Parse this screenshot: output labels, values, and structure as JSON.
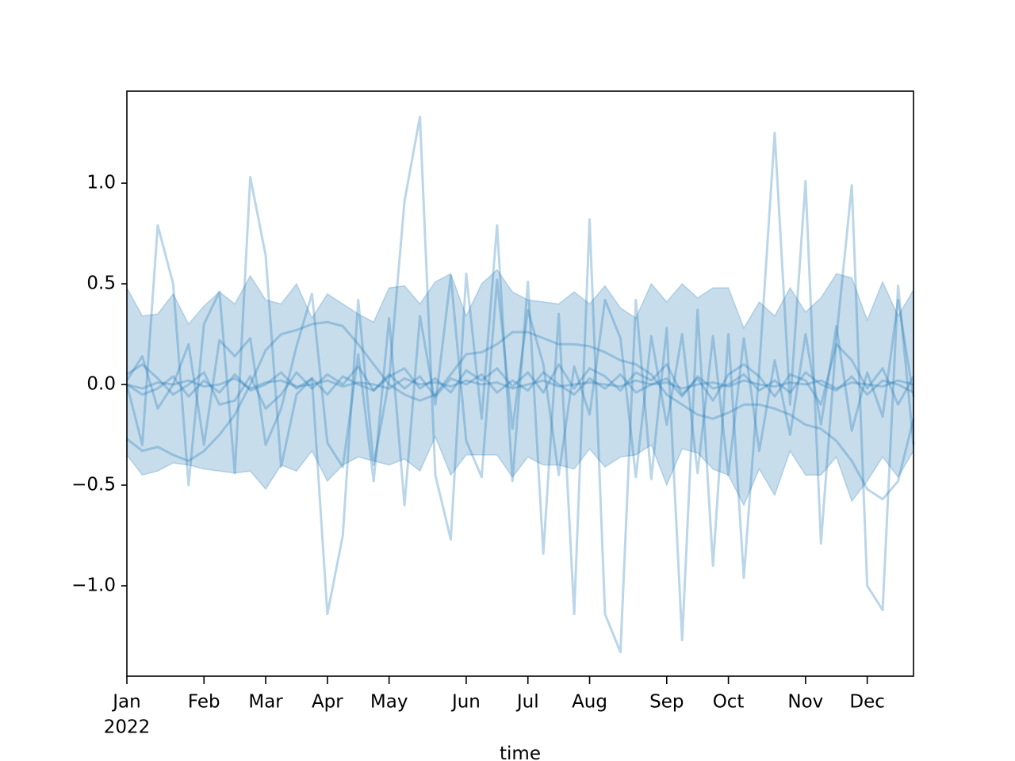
{
  "chart_data": {
    "type": "line",
    "color": "#1f77b4",
    "xlabel": "time",
    "x_year_label": "2022",
    "x": [
      0,
      1,
      2,
      3,
      4,
      5,
      6,
      7,
      8,
      9,
      10,
      11,
      12,
      13,
      14,
      15,
      16,
      17,
      18,
      19,
      20,
      21,
      22,
      23,
      24,
      25,
      26,
      27,
      28,
      29,
      30,
      31,
      32,
      33,
      34,
      35,
      36,
      37,
      38,
      39,
      40,
      41,
      42,
      43,
      44,
      45,
      46,
      47,
      48,
      49,
      50,
      51
    ],
    "xlim": [
      0,
      51
    ],
    "xticks": [
      {
        "value": 0,
        "label": "Jan"
      },
      {
        "value": 5,
        "label": "Feb"
      },
      {
        "value": 9,
        "label": "Mar"
      },
      {
        "value": 13,
        "label": "Apr"
      },
      {
        "value": 17,
        "label": "May"
      },
      {
        "value": 22,
        "label": "Jun"
      },
      {
        "value": 26,
        "label": "Jul"
      },
      {
        "value": 30,
        "label": "Aug"
      },
      {
        "value": 35,
        "label": "Sep"
      },
      {
        "value": 39,
        "label": "Oct"
      },
      {
        "value": 44,
        "label": "Nov"
      },
      {
        "value": 48,
        "label": "Dec"
      }
    ],
    "ylim": [
      -1.449,
      1.457
    ],
    "yticks": [
      {
        "value": -1,
        "label": "−1.0"
      },
      {
        "value": -0.5,
        "label": "−0.5"
      },
      {
        "value": 0,
        "label": "0.0"
      },
      0.5,
      {
        "value": 1,
        "label": "1.0"
      }
    ],
    "band": {
      "upper": [
        0.48,
        0.34,
        0.35,
        0.45,
        0.3,
        0.39,
        0.46,
        0.4,
        0.54,
        0.42,
        0.4,
        0.5,
        0.33,
        0.45,
        0.4,
        0.35,
        0.31,
        0.48,
        0.49,
        0.4,
        0.51,
        0.55,
        0.34,
        0.5,
        0.57,
        0.46,
        0.42,
        0.41,
        0.4,
        0.46,
        0.4,
        0.49,
        0.38,
        0.33,
        0.5,
        0.41,
        0.5,
        0.43,
        0.48,
        0.48,
        0.28,
        0.41,
        0.34,
        0.48,
        0.36,
        0.43,
        0.55,
        0.53,
        0.32,
        0.51,
        0.34,
        0.47
      ],
      "lower": [
        -0.35,
        -0.45,
        -0.43,
        -0.39,
        -0.4,
        -0.42,
        -0.43,
        -0.44,
        -0.43,
        -0.52,
        -0.4,
        -0.43,
        -0.33,
        -0.48,
        -0.4,
        -0.36,
        -0.38,
        -0.4,
        -0.37,
        -0.43,
        -0.26,
        -0.45,
        -0.35,
        -0.35,
        -0.35,
        -0.46,
        -0.36,
        -0.4,
        -0.4,
        -0.42,
        -0.32,
        -0.41,
        -0.36,
        -0.35,
        -0.3,
        -0.5,
        -0.32,
        -0.34,
        -0.42,
        -0.45,
        -0.6,
        -0.42,
        -0.55,
        -0.33,
        -0.45,
        -0.45,
        -0.36,
        -0.58,
        -0.48,
        -0.36,
        -0.46,
        -0.33
      ]
    },
    "series": [
      {
        "values": [
          0.0,
          -0.3,
          0.79,
          0.5,
          -0.5,
          0.3,
          0.46,
          -0.44,
          1.03,
          0.64,
          -0.41,
          -0.05,
          0.03,
          -1.14,
          -0.75,
          0.42,
          -0.4,
          0.02,
          0.91,
          1.33,
          -0.45,
          -0.77,
          0.55,
          -0.17,
          0.79,
          -0.48,
          0.51,
          -0.84,
          0.35,
          -1.14,
          0.82,
          -1.14,
          -1.33,
          0.42,
          -0.47,
          0.28,
          -1.27,
          0.37,
          -0.9,
          0.25,
          -0.96,
          0.08,
          1.25,
          -0.1,
          1.01,
          -0.79,
          0.23,
          0.99,
          -1.0,
          -1.12,
          0.49,
          -0.3
        ]
      },
      {
        "values": [
          0.02,
          0.14,
          -0.12,
          0.0,
          0.2,
          -0.3,
          0.22,
          0.14,
          0.23,
          -0.3,
          -0.12,
          0.19,
          0.45,
          -0.29,
          -0.41,
          0.15,
          -0.48,
          0.33,
          -0.6,
          0.34,
          -0.1,
          0.54,
          -0.28,
          -0.46,
          0.52,
          -0.22,
          0.37,
          0.1,
          -0.45,
          0.09,
          -0.15,
          0.42,
          0.23,
          -0.46,
          0.24,
          -0.2,
          0.25,
          -0.44,
          0.24,
          -0.45,
          0.23,
          -0.33,
          0.12,
          -0.25,
          0.25,
          -0.2,
          0.29,
          -0.23,
          0.06,
          -0.16,
          0.42,
          -0.06
        ]
      },
      {
        "values": [
          -0.27,
          -0.33,
          -0.31,
          -0.35,
          -0.38,
          -0.33,
          -0.25,
          -0.15,
          0.0,
          0.17,
          0.25,
          0.27,
          0.3,
          0.31,
          0.29,
          0.2,
          0.1,
          0.0,
          -0.05,
          -0.08,
          -0.05,
          0.05,
          0.15,
          0.16,
          0.2,
          0.26,
          0.26,
          0.23,
          0.2,
          0.2,
          0.19,
          0.16,
          0.12,
          0.1,
          0.05,
          -0.05,
          -0.1,
          -0.15,
          -0.17,
          -0.14,
          -0.1,
          -0.1,
          -0.12,
          -0.15,
          -0.2,
          -0.22,
          -0.28,
          -0.38,
          -0.52,
          -0.57,
          -0.48,
          -0.17
        ]
      },
      {
        "values": [
          0.05,
          0.1,
          0.03,
          -0.05,
          0.0,
          0.06,
          -0.1,
          -0.08,
          0.04,
          -0.12,
          -0.05,
          0.06,
          -0.02,
          0.05,
          0.0,
          0.09,
          -0.03,
          0.04,
          0.08,
          -0.02,
          0.03,
          -0.04,
          0.07,
          0.02,
          0.08,
          -0.01,
          0.06,
          -0.04,
          0.1,
          -0.02,
          0.08,
          0.04,
          -0.03,
          0.06,
          0.02,
          0.1,
          -0.05,
          0.03,
          -0.08,
          0.05,
          0.1,
          0.04,
          -0.06,
          0.05,
          0.02,
          -0.1,
          0.2,
          0.12,
          -0.02,
          0.08,
          -0.1,
          0.04
        ]
      },
      {
        "values": [
          0.0,
          -0.02,
          0.01,
          0.0,
          0.02,
          -0.01,
          0.0,
          0.03,
          -0.02,
          0.01,
          0.02,
          -0.01,
          0.0,
          0.02,
          -0.01,
          0.01,
          0.0,
          -0.02,
          0.03,
          0.0,
          0.01,
          -0.01,
          0.02,
          0.0,
          0.01,
          -0.02,
          0.0,
          0.02,
          -0.01,
          0.0,
          0.01,
          0.0,
          -0.01,
          0.02,
          0.0,
          0.01,
          -0.02,
          0.0,
          0.01,
          -0.01,
          0.02,
          0.0,
          -0.01,
          0.01,
          0.0,
          0.02,
          -0.02,
          0.01,
          0.0,
          -0.01,
          0.02,
          0.0
        ]
      },
      {
        "values": [
          0.0,
          -0.05,
          -0.02,
          0.04,
          -0.06,
          0.02,
          -0.04,
          0.05,
          -0.03,
          0.0,
          0.06,
          -0.02,
          0.03,
          -0.05,
          0.04,
          0.0,
          -0.03,
          0.05,
          -0.02,
          0.04,
          -0.06,
          0.03,
          0.0,
          0.05,
          -0.04,
          0.02,
          -0.03,
          0.06,
          0.0,
          -0.05,
          0.03,
          -0.02,
          0.05,
          -0.04,
          0.0,
          0.03,
          -0.06,
          0.04,
          -0.02,
          0.0,
          0.05,
          -0.03,
          0.02,
          -0.04,
          0.06,
          0.0,
          -0.03,
          0.04,
          -0.05,
          0.02,
          0.0,
          -0.04
        ]
      }
    ]
  }
}
